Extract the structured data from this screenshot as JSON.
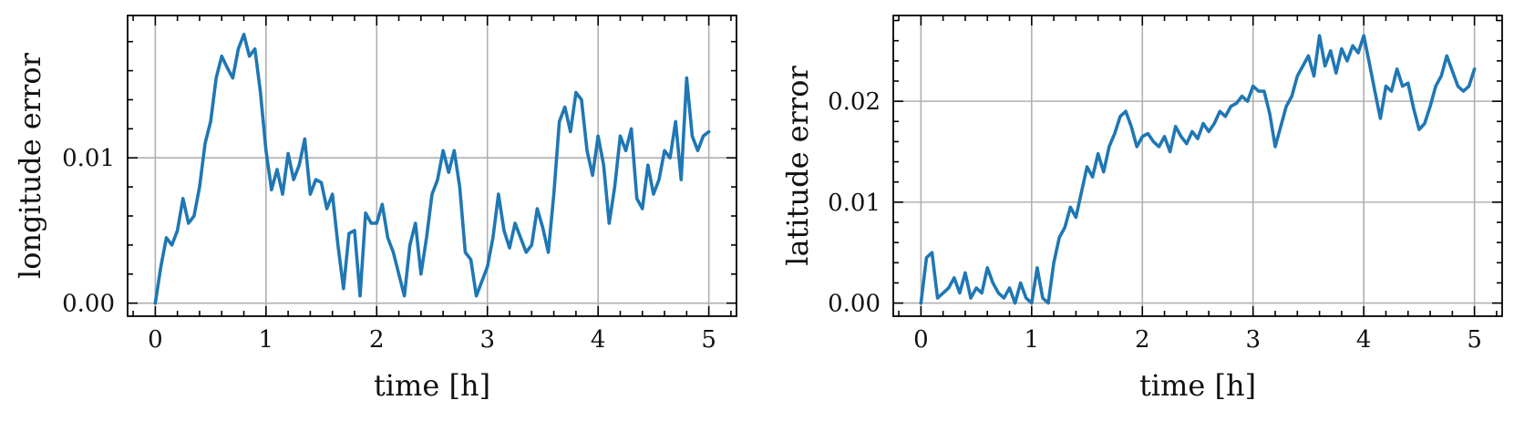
{
  "chart_data": [
    {
      "type": "line",
      "xlabel": "time [h]",
      "ylabel": "longitude error",
      "xlim": [
        -0.25,
        5.25
      ],
      "ylim": [
        -0.0009,
        0.0198
      ],
      "xticks": [
        0,
        1,
        2,
        3,
        4,
        5
      ],
      "xtick_labels": [
        "0",
        "1",
        "2",
        "3",
        "4",
        "5"
      ],
      "yticks": [
        0.0,
        0.01
      ],
      "ytick_labels": [
        "0.00",
        "0.01"
      ],
      "grid": true,
      "color": "#1f77b4",
      "series": [
        {
          "x": [
            0,
            0.05,
            0.1,
            0.15,
            0.2,
            0.25,
            0.3,
            0.35,
            0.4,
            0.45,
            0.5,
            0.55,
            0.6,
            0.65,
            0.7,
            0.75,
            0.8,
            0.85,
            0.9,
            0.95,
            1.0,
            1.05,
            1.1,
            1.15,
            1.2,
            1.25,
            1.3,
            1.35,
            1.4,
            1.45,
            1.5,
            1.55,
            1.6,
            1.65,
            1.7,
            1.75,
            1.8,
            1.85,
            1.9,
            1.95,
            2.0,
            2.05,
            2.1,
            2.15,
            2.2,
            2.25,
            2.3,
            2.35,
            2.4,
            2.45,
            2.5,
            2.55,
            2.6,
            2.65,
            2.7,
            2.75,
            2.8,
            2.85,
            2.9,
            2.95,
            3.0,
            3.05,
            3.1,
            3.15,
            3.2,
            3.25,
            3.3,
            3.35,
            3.4,
            3.45,
            3.5,
            3.55,
            3.6,
            3.65,
            3.7,
            3.75,
            3.8,
            3.85,
            3.9,
            3.95,
            4.0,
            4.05,
            4.1,
            4.15,
            4.2,
            4.25,
            4.3,
            4.35,
            4.4,
            4.45,
            4.5,
            4.55,
            4.6,
            4.65,
            4.7,
            4.75,
            4.8,
            4.85,
            4.9,
            4.95,
            5.0
          ],
          "y": [
            0.0,
            0.0025,
            0.0045,
            0.004,
            0.005,
            0.0072,
            0.0055,
            0.006,
            0.008,
            0.011,
            0.0125,
            0.0155,
            0.017,
            0.0162,
            0.0155,
            0.0175,
            0.0185,
            0.017,
            0.0175,
            0.0145,
            0.0105,
            0.0078,
            0.0092,
            0.0075,
            0.0103,
            0.0085,
            0.0095,
            0.0113,
            0.0075,
            0.0085,
            0.0083,
            0.0065,
            0.0075,
            0.004,
            0.001,
            0.0048,
            0.005,
            0.0005,
            0.0062,
            0.0055,
            0.0055,
            0.0068,
            0.0045,
            0.0035,
            0.002,
            0.0005,
            0.004,
            0.0055,
            0.002,
            0.0045,
            0.0075,
            0.0085,
            0.0105,
            0.009,
            0.0105,
            0.008,
            0.0035,
            0.003,
            0.0005,
            0.0015,
            0.0025,
            0.0045,
            0.0075,
            0.005,
            0.0038,
            0.0055,
            0.0045,
            0.0035,
            0.004,
            0.0065,
            0.0052,
            0.0035,
            0.0075,
            0.0125,
            0.0135,
            0.0118,
            0.0145,
            0.014,
            0.0105,
            0.0088,
            0.0115,
            0.0095,
            0.0055,
            0.008,
            0.0115,
            0.0105,
            0.012,
            0.0072,
            0.0065,
            0.0095,
            0.0075,
            0.0085,
            0.0105,
            0.01,
            0.0125,
            0.0085,
            0.0155,
            0.0115,
            0.0105,
            0.0115,
            0.0118
          ]
        }
      ]
    },
    {
      "type": "line",
      "xlabel": "time [h]",
      "ylabel": "latitude error",
      "xlim": [
        -0.25,
        5.25
      ],
      "ylim": [
        -0.0013,
        0.0285
      ],
      "xticks": [
        0,
        1,
        2,
        3,
        4,
        5
      ],
      "xtick_labels": [
        "0",
        "1",
        "2",
        "3",
        "4",
        "5"
      ],
      "yticks": [
        0.0,
        0.01,
        0.02
      ],
      "ytick_labels": [
        "0.00",
        "0.01",
        "0.02"
      ],
      "grid": true,
      "color": "#1f77b4",
      "series": [
        {
          "x": [
            0,
            0.05,
            0.1,
            0.15,
            0.2,
            0.25,
            0.3,
            0.35,
            0.4,
            0.45,
            0.5,
            0.55,
            0.6,
            0.65,
            0.7,
            0.75,
            0.8,
            0.85,
            0.9,
            0.95,
            1.0,
            1.05,
            1.1,
            1.15,
            1.2,
            1.25,
            1.3,
            1.35,
            1.4,
            1.45,
            1.5,
            1.55,
            1.6,
            1.65,
            1.7,
            1.75,
            1.8,
            1.85,
            1.9,
            1.95,
            2.0,
            2.05,
            2.1,
            2.15,
            2.2,
            2.25,
            2.3,
            2.35,
            2.4,
            2.45,
            2.5,
            2.55,
            2.6,
            2.65,
            2.7,
            2.75,
            2.8,
            2.85,
            2.9,
            2.95,
            3.0,
            3.05,
            3.1,
            3.15,
            3.2,
            3.25,
            3.3,
            3.35,
            3.4,
            3.45,
            3.5,
            3.55,
            3.6,
            3.65,
            3.7,
            3.75,
            3.8,
            3.85,
            3.9,
            3.95,
            4.0,
            4.05,
            4.1,
            4.15,
            4.2,
            4.25,
            4.3,
            4.35,
            4.4,
            4.45,
            4.5,
            4.55,
            4.6,
            4.65,
            4.7,
            4.75,
            4.8,
            4.85,
            4.9,
            4.95,
            5.0
          ],
          "y": [
            0.0,
            0.0045,
            0.005,
            0.0005,
            0.001,
            0.0015,
            0.0025,
            0.001,
            0.003,
            0.0005,
            0.0015,
            0.001,
            0.0035,
            0.002,
            0.001,
            0.0005,
            0.0015,
            0.0,
            0.002,
            0.0005,
            0.0,
            0.0035,
            0.0005,
            0.0,
            0.004,
            0.0065,
            0.0075,
            0.0095,
            0.0085,
            0.011,
            0.0135,
            0.0125,
            0.0148,
            0.013,
            0.0155,
            0.0168,
            0.0185,
            0.019,
            0.0175,
            0.0155,
            0.0165,
            0.0168,
            0.016,
            0.0155,
            0.0165,
            0.015,
            0.0175,
            0.0165,
            0.0158,
            0.017,
            0.0163,
            0.0178,
            0.017,
            0.0178,
            0.019,
            0.0185,
            0.0195,
            0.0198,
            0.0205,
            0.02,
            0.0215,
            0.021,
            0.021,
            0.0188,
            0.0155,
            0.0175,
            0.0195,
            0.0205,
            0.0225,
            0.0235,
            0.0245,
            0.0225,
            0.0265,
            0.0235,
            0.025,
            0.0228,
            0.0252,
            0.024,
            0.0255,
            0.0248,
            0.0265,
            0.0238,
            0.021,
            0.0183,
            0.0215,
            0.021,
            0.0232,
            0.0215,
            0.0218,
            0.0193,
            0.0172,
            0.0178,
            0.0195,
            0.0215,
            0.0225,
            0.0245,
            0.023,
            0.0215,
            0.021,
            0.0215,
            0.0232
          ]
        }
      ]
    }
  ]
}
